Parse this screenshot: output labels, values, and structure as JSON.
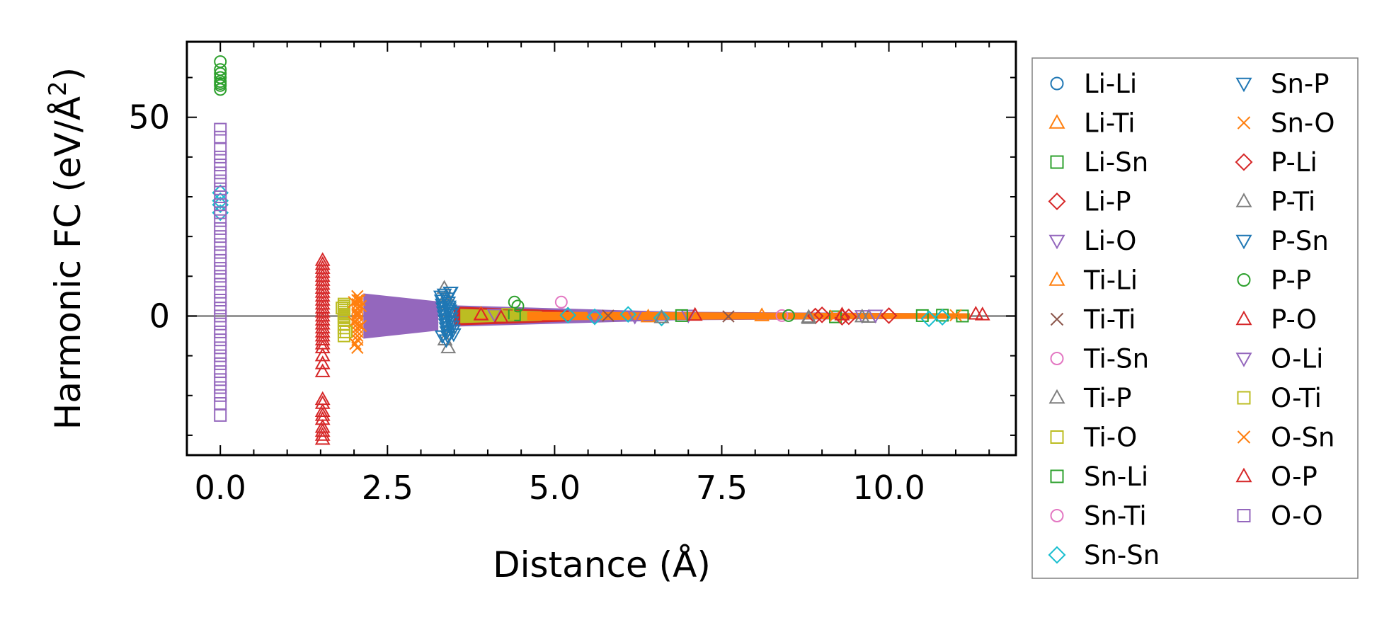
{
  "chart_data": {
    "type": "scatter",
    "title": "",
    "xlabel": "Distance (Å)",
    "ylabel_main": "Harmonic FC (eV/Å",
    "ylabel_sup": "2",
    "ylabel_close": ")",
    "xlim": [
      -0.5,
      11.9
    ],
    "ylim": [
      -35,
      69
    ],
    "xticks": [
      0.0,
      2.5,
      5.0,
      7.5,
      10.0
    ],
    "xtick_labels": [
      "0.0",
      "2.5",
      "5.0",
      "7.5",
      "10.0"
    ],
    "yticks": [
      0,
      50
    ],
    "ytick_labels": [
      "0",
      "50"
    ],
    "zero_line": true,
    "legend_position": "outside-right",
    "colors": {
      "blue": "#1f77b4",
      "orange": "#ff7f0e",
      "green": "#2ca02c",
      "red": "#d62728",
      "purple": "#9467bd",
      "brown": "#8c564b",
      "pink": "#e377c2",
      "gray": "#7f7f7f",
      "olive": "#bcbd22",
      "cyan": "#17becf"
    },
    "series": [
      {
        "name": "Li-Li",
        "marker": "circle",
        "color": "#1f77b4",
        "x": [],
        "y": []
      },
      {
        "name": "Li-Ti",
        "marker": "triangle-up",
        "color": "#ff7f0e",
        "x": [],
        "y": []
      },
      {
        "name": "Li-Sn",
        "marker": "square",
        "color": "#2ca02c",
        "x": [
          4.4,
          9.2,
          10.5,
          11.1
        ],
        "y": [
          0.3,
          -0.2,
          0.1,
          0.0
        ]
      },
      {
        "name": "Li-P",
        "marker": "diamond",
        "color": "#d62728",
        "x": [
          5.2,
          8.9,
          9.3
        ],
        "y": [
          0.2,
          0.0,
          -0.3
        ]
      },
      {
        "name": "Li-O",
        "marker": "triangle-down",
        "color": "#9467bd",
        "x": [
          5.6,
          7.0,
          9.6
        ],
        "y": [
          -0.3,
          0.2,
          0.1
        ]
      },
      {
        "name": "Ti-Li",
        "marker": "triangle-up",
        "color": "#ff7f0e",
        "x": [
          3.9,
          6.4,
          8.1
        ],
        "y": [
          0.5,
          -0.2,
          0.1
        ]
      },
      {
        "name": "Ti-Ti",
        "marker": "x",
        "color": "#8c564b",
        "x": [
          5.8,
          7.6
        ],
        "y": [
          0.1,
          -0.1
        ]
      },
      {
        "name": "Ti-Sn",
        "marker": "circle",
        "color": "#e377c2",
        "x": [
          5.1
        ],
        "y": [
          3.5
        ]
      },
      {
        "name": "Ti-P",
        "marker": "triangle-up",
        "color": "#7f7f7f",
        "x": [
          3.35,
          3.38,
          3.4,
          3.42,
          3.36,
          3.41,
          6.6,
          8.8,
          9.6
        ],
        "y": [
          7,
          5,
          3,
          -3,
          -6,
          -8,
          -0.4,
          -0.3,
          -0.2
        ]
      },
      {
        "name": "Ti-O",
        "marker": "square",
        "color": "#bcbd22",
        "x": [
          1.85,
          1.85,
          1.85,
          1.85,
          1.85,
          1.85,
          1.85,
          1.85,
          1.85,
          1.85,
          1.85,
          1.85,
          1.85
        ],
        "y": [
          3,
          2.5,
          2,
          1.5,
          1,
          0.5,
          0,
          -0.5,
          -1,
          -2,
          -3,
          -4,
          -5
        ]
      },
      {
        "name": "Sn-Li",
        "marker": "square",
        "color": "#2ca02c",
        "x": [
          6.9,
          10.8
        ],
        "y": [
          0.1,
          0.2
        ]
      },
      {
        "name": "Sn-Ti",
        "marker": "circle",
        "color": "#e377c2",
        "x": [
          8.4
        ],
        "y": [
          0.1
        ]
      },
      {
        "name": "Sn-Sn",
        "marker": "diamond",
        "color": "#17becf",
        "x": [
          0.0,
          0.0,
          0.0,
          0.0,
          5.2,
          5.6,
          6.1,
          6.6,
          10.6,
          10.8
        ],
        "y": [
          31,
          29,
          28,
          26,
          0.2,
          -0.2,
          0.4,
          -0.5,
          -0.7,
          -0.3
        ]
      },
      {
        "name": "Sn-P",
        "marker": "triangle-down",
        "color": "#1f77b4",
        "x": [
          3.3,
          3.31,
          3.32,
          3.33,
          3.34,
          3.35,
          3.36,
          3.37,
          3.38,
          3.39,
          3.4,
          3.41,
          3.42,
          3.43,
          3.44,
          3.45,
          3.46,
          3.47,
          3.48,
          3.49,
          3.35,
          3.4,
          3.45,
          3.38,
          3.42
        ],
        "y": [
          5,
          4,
          3,
          2,
          1,
          0,
          -1,
          -2,
          -3,
          -4,
          4.5,
          3.5,
          2.5,
          1.5,
          0.5,
          -0.5,
          -1.5,
          -2.5,
          -3.5,
          -4.5,
          5.5,
          -5,
          6,
          -6,
          2
        ]
      },
      {
        "name": "Sn-O",
        "marker": "x",
        "color": "#ff7f0e",
        "x": [
          2.05,
          2.05,
          2.05,
          2.05,
          2.05,
          2.05,
          2.05,
          2.05,
          2.05,
          2.05,
          2.05,
          2.05,
          2.0,
          2.1,
          2.0,
          2.1,
          2.05,
          2.05
        ],
        "y": [
          5,
          4,
          3,
          2,
          1,
          0.5,
          0,
          -1,
          -2,
          -3,
          -4,
          -5,
          3.5,
          2.5,
          -1.5,
          -2.5,
          -6,
          -8
        ]
      },
      {
        "name": "P-Li",
        "marker": "diamond",
        "color": "#d62728",
        "x": [
          9.0,
          9.4,
          10.0
        ],
        "y": [
          0.3,
          -0.2,
          0.1
        ]
      },
      {
        "name": "P-Ti",
        "marker": "triangle-up",
        "color": "#7f7f7f",
        "x": [
          6.6,
          8.8,
          9.7
        ],
        "y": [
          -0.4,
          -0.6,
          -0.3
        ]
      },
      {
        "name": "P-Sn",
        "marker": "triangle-down",
        "color": "#1f77b4",
        "x": [
          3.32,
          3.44,
          3.47
        ],
        "y": [
          -5,
          6,
          1
        ]
      },
      {
        "name": "P-P",
        "marker": "circle",
        "color": "#2ca02c",
        "x": [
          0.0,
          0.0,
          0.0,
          0.0,
          0.0,
          0.0,
          0.0,
          0.0,
          4.4,
          4.45,
          8.5
        ],
        "y": [
          64,
          62,
          61,
          60,
          59,
          58.5,
          58,
          57,
          3.5,
          2.5,
          0.1
        ]
      },
      {
        "name": "P-O",
        "marker": "triangle-up",
        "color": "#d62728",
        "x": [
          1.53,
          1.53,
          1.53,
          1.53,
          1.53,
          1.53,
          1.53,
          1.53,
          1.53,
          1.53,
          1.53,
          1.53,
          1.53,
          1.53,
          1.53,
          1.53,
          1.53,
          1.53,
          1.53,
          1.53,
          1.53,
          1.53,
          1.53,
          1.53,
          1.53,
          1.53,
          1.53,
          1.53,
          1.53,
          1.53,
          1.53,
          1.53,
          11.4
        ],
        "y": [
          14,
          12,
          10,
          8,
          6,
          4,
          2,
          0,
          -2,
          -4,
          -6,
          -8,
          -10,
          -12,
          -14,
          -22,
          -24,
          -26,
          -28,
          -30,
          -31,
          13,
          11,
          9,
          7,
          5,
          3,
          1,
          -1,
          -3,
          -5,
          -7,
          0.3
        ]
      },
      {
        "name": "O-Li",
        "marker": "triangle-down",
        "color": "#9467bd",
        "x": [
          4.1,
          6.2,
          9.8
        ],
        "y": [
          0.4,
          -0.1,
          0.2
        ]
      },
      {
        "name": "O-Ti",
        "marker": "square",
        "color": "#bcbd22",
        "x": [
          1.82,
          1.88,
          4.3
        ],
        "y": [
          2,
          -4,
          0.4
        ]
      },
      {
        "name": "O-Sn",
        "marker": "x",
        "color": "#ff7f0e",
        "x": [
          2.02,
          2.08,
          9.2,
          11.0
        ],
        "y": [
          -7,
          4,
          0.1,
          0.2
        ]
      },
      {
        "name": "O-P",
        "marker": "triangle-up",
        "color": "#d62728",
        "x": [
          1.53,
          1.53,
          1.53,
          3.9,
          4.2,
          7.1,
          9.3,
          11.3
        ],
        "y": [
          -21,
          -25,
          -29,
          0.3,
          -0.4,
          0.2,
          0.3,
          0.5
        ]
      },
      {
        "name": "O-O",
        "marker": "square",
        "color": "#9467bd",
        "x": [
          0.0,
          0.0,
          0.0,
          0.0,
          0.0,
          0.0,
          0.0,
          0.0,
          0.0,
          0.0,
          0.0,
          0.0,
          0.0,
          0.0,
          0.0,
          0.0,
          0.0,
          0.0,
          0.0,
          0.0,
          0.0,
          0.0,
          0.0,
          0.0,
          0.0,
          0.0,
          0.0,
          0.0,
          0.0,
          0.0,
          0.0,
          0.0,
          0.0,
          0.0,
          0.0,
          0.0
        ],
        "y": [
          47,
          45,
          42,
          40,
          38,
          36,
          34,
          32,
          30,
          28,
          26,
          24,
          22,
          20,
          18,
          16,
          14,
          12,
          10,
          8,
          6,
          4,
          2,
          0,
          -2,
          -4,
          -6,
          -8,
          -10,
          -12,
          -14,
          -16,
          -18,
          -20,
          -22,
          -25
        ]
      }
    ],
    "dense_bands": [
      {
        "name": "O-O",
        "color": "#9467bd",
        "x_start": 2.15,
        "x_end": 3.25,
        "half_height_start": 5.5,
        "half_height_end": 3.5
      },
      {
        "name": "O-O",
        "color": "#9467bd",
        "x_start": 3.5,
        "x_end": 6.8,
        "half_height_start": 2.5,
        "half_height_end": 0.9
      },
      {
        "name": "O-O",
        "color": "#9467bd",
        "x_start": 6.8,
        "x_end": 11.2,
        "half_height_start": 0.9,
        "half_height_end": 0.5
      },
      {
        "name": "P-O",
        "color": "#d62728",
        "x_start": 3.5,
        "x_end": 5.2,
        "half_height_start": 2.2,
        "half_height_end": 1.2
      },
      {
        "name": "O-Ti",
        "color": "#bcbd22",
        "x_start": 3.6,
        "x_end": 4.8,
        "half_height_start": 1.6,
        "half_height_end": 1.0
      },
      {
        "name": "Ti-Li",
        "color": "#ff7f0e",
        "x_start": 4.6,
        "x_end": 11.2,
        "half_height_start": 0.9,
        "half_height_end": 0.5
      }
    ]
  }
}
